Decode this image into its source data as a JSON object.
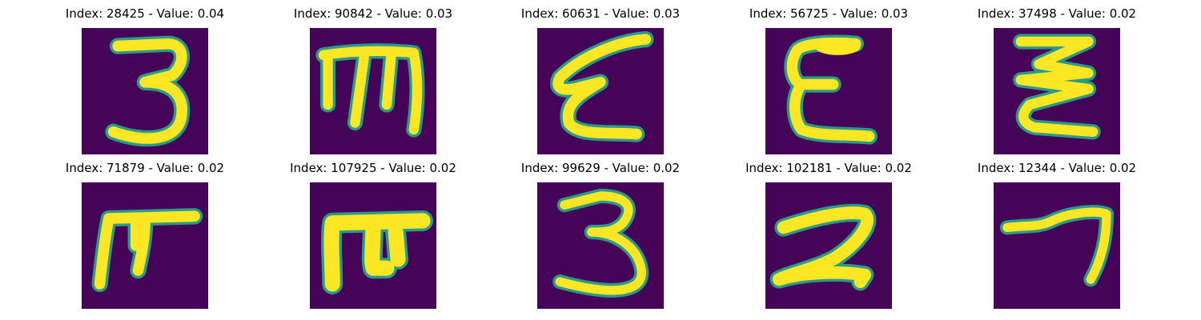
{
  "colors": {
    "background": "#450457",
    "ink": "#fde725",
    "edge": "#2a9b8a",
    "title": "#000000"
  },
  "panels": [
    {
      "title": "Index: 28425 - Value: 0.04",
      "glyph": "digit-3"
    },
    {
      "title": "Index: 90842 - Value: 0.03",
      "glyph": "m-shape"
    },
    {
      "title": "Index: 60631 - Value: 0.03",
      "glyph": "epsilon-slanted"
    },
    {
      "title": "Index: 56725 - Value: 0.03",
      "glyph": "epsilon"
    },
    {
      "title": "Index: 37498 - Value: 0.02",
      "glyph": "zigzag"
    },
    {
      "title": "Index: 71879 - Value: 0.02",
      "glyph": "pi-shape"
    },
    {
      "title": "Index: 107925 - Value: 0.02",
      "glyph": "pi-shape-bold"
    },
    {
      "title": "Index: 99629 - Value: 0.02",
      "glyph": "digit-3"
    },
    {
      "title": "Index: 102181 - Value: 0.02",
      "glyph": "digit-2"
    },
    {
      "title": "Index: 12344 - Value: 0.02",
      "glyph": "digit-7"
    }
  ]
}
